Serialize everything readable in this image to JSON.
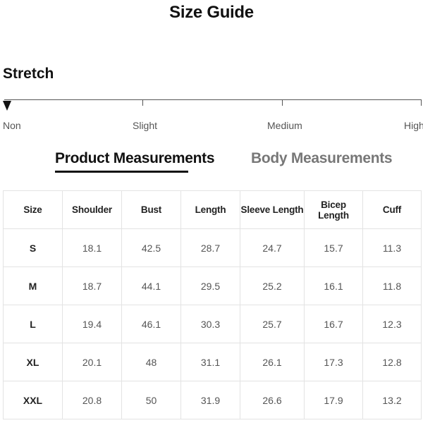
{
  "title": "Size Guide",
  "stretch": {
    "heading": "Stretch",
    "levels": [
      "Non",
      "Slight",
      "Medium",
      "High"
    ],
    "selected": "Non"
  },
  "tabs": [
    {
      "label": "Product Measurements",
      "active": true
    },
    {
      "label": "Body Measurements",
      "active": false
    }
  ],
  "table": {
    "headers": [
      "Size",
      "Shoulder",
      "Bust",
      "Length",
      "Sleeve Length",
      "Bicep Length",
      "Cuff"
    ],
    "rows": [
      [
        "S",
        "18.1",
        "42.5",
        "28.7",
        "24.7",
        "15.7",
        "11.3"
      ],
      [
        "M",
        "18.7",
        "44.1",
        "29.5",
        "25.2",
        "16.1",
        "11.8"
      ],
      [
        "L",
        "19.4",
        "46.1",
        "30.3",
        "25.7",
        "16.7",
        "12.3"
      ],
      [
        "XL",
        "20.1",
        "48",
        "31.1",
        "26.1",
        "17.3",
        "12.8"
      ],
      [
        "XXL",
        "20.8",
        "50",
        "31.9",
        "26.6",
        "17.9",
        "13.2"
      ]
    ]
  }
}
